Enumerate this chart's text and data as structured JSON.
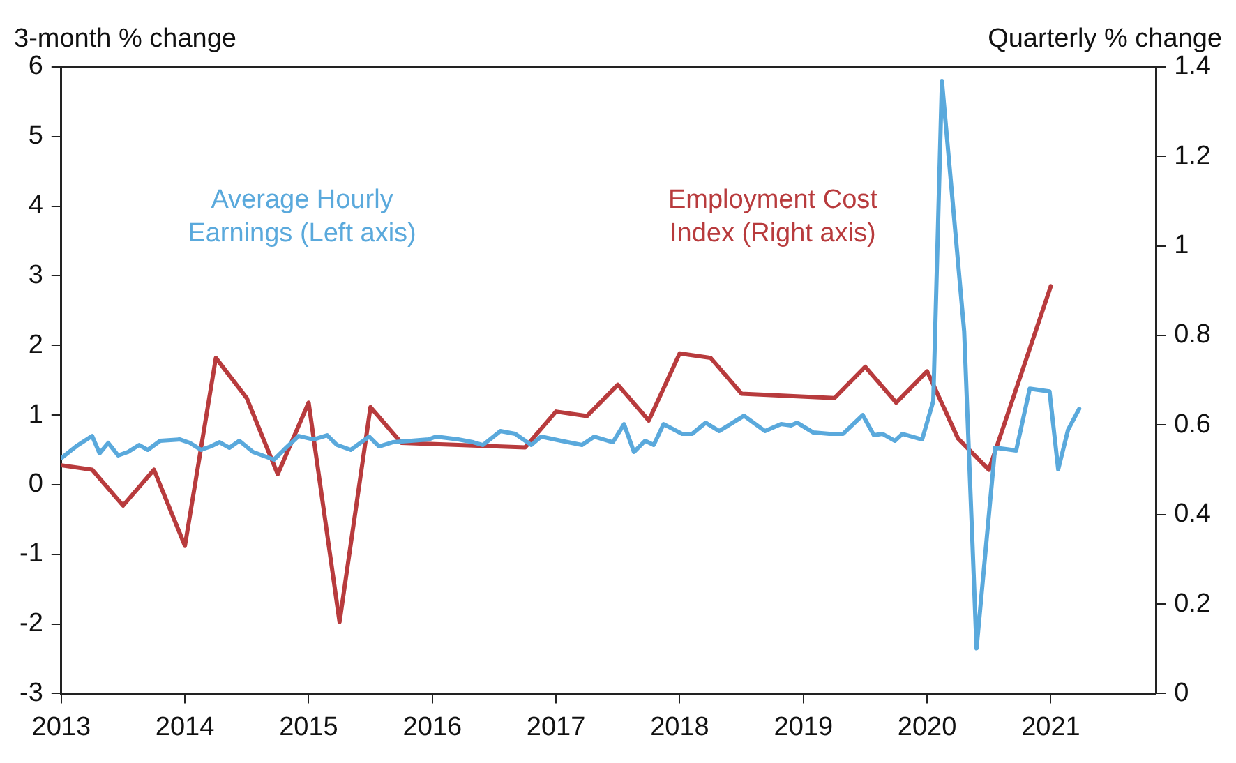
{
  "chart_data": {
    "type": "line",
    "ylabel": "3-month % change",
    "y2label": "Quarterly % change",
    "xlim": [
      2013,
      2021.85
    ],
    "xticks": [
      {
        "value": 2013,
        "label": "2013"
      },
      {
        "value": 2014,
        "label": "2014"
      },
      {
        "value": 2015,
        "label": "2015"
      },
      {
        "value": 2016,
        "label": "2016"
      },
      {
        "value": 2017,
        "label": "2017"
      },
      {
        "value": 2018,
        "label": "2018"
      },
      {
        "value": 2019,
        "label": "2019"
      },
      {
        "value": 2020,
        "label": "2020"
      },
      {
        "value": 2021,
        "label": "2021"
      }
    ],
    "ylim": [
      -3,
      6
    ],
    "yticks": [
      -3,
      -2,
      -1,
      0,
      1,
      2,
      3,
      4,
      5,
      6
    ],
    "y2lim": [
      0,
      1.4
    ],
    "y2ticks": [
      0,
      0.2,
      0.4,
      0.6,
      0.8,
      1,
      1.2,
      1.4
    ],
    "grid": false,
    "legend": false,
    "marker": "none",
    "line_style": "solid",
    "series": [
      {
        "name": "Average Hourly Earnings (Left axis)",
        "color": "#5aa9dc",
        "axis": "y",
        "x": [
          2013,
          2013.12,
          2013.25,
          2013.31,
          2013.38,
          2013.46,
          2013.54,
          2013.63,
          2013.7,
          2013.8,
          2013.96,
          2014.04,
          2014.13,
          2014.21,
          2014.28,
          2014.36,
          2014.44,
          2014.55,
          2014.72,
          2014.8,
          2014.92,
          2015.04,
          2015.15,
          2015.23,
          2015.34,
          2015.49,
          2015.57,
          2015.68,
          2015.83,
          2015.97,
          2016.03,
          2016.21,
          2016.33,
          2016.41,
          2016.55,
          2016.67,
          2016.8,
          2016.88,
          2017.04,
          2017.21,
          2017.31,
          2017.46,
          2017.55,
          2017.63,
          2017.72,
          2017.79,
          2017.87,
          2018.02,
          2018.1,
          2018.21,
          2018.32,
          2018.52,
          2018.69,
          2018.82,
          2018.9,
          2018.95,
          2019.08,
          2019.21,
          2019.32,
          2019.48,
          2019.57,
          2019.64,
          2019.74,
          2019.8,
          2019.96,
          2020.05,
          2020.12,
          2020.3,
          2020.4,
          2020.55,
          2020.64,
          2020.72,
          2020.83,
          2020.99,
          2021.06,
          2021.14,
          2021.23
        ],
        "values": [
          0.38,
          0.55,
          0.7,
          0.45,
          0.6,
          0.42,
          0.47,
          0.57,
          0.5,
          0.63,
          0.65,
          0.6,
          0.5,
          0.55,
          0.61,
          0.53,
          0.63,
          0.47,
          0.36,
          0.5,
          0.7,
          0.65,
          0.71,
          0.57,
          0.5,
          0.69,
          0.55,
          0.61,
          0.63,
          0.65,
          0.69,
          0.65,
          0.61,
          0.57,
          0.77,
          0.73,
          0.57,
          0.69,
          0.63,
          0.57,
          0.69,
          0.61,
          0.87,
          0.47,
          0.63,
          0.57,
          0.87,
          0.73,
          0.73,
          0.89,
          0.77,
          0.99,
          0.77,
          0.87,
          0.85,
          0.89,
          0.75,
          0.73,
          0.73,
          1.0,
          0.71,
          0.73,
          0.63,
          0.73,
          0.65,
          1.2,
          5.8,
          2.2,
          -2.35,
          0.53,
          0.51,
          0.49,
          1.38,
          1.34,
          0.22,
          0.79,
          1.09
        ]
      },
      {
        "name": "Employment Cost Index (Right axis)",
        "color": "#b83b3d",
        "axis": "y2",
        "x": [
          2013,
          2013.25,
          2013.5,
          2013.75,
          2014,
          2014.25,
          2014.5,
          2014.75,
          2015,
          2015.25,
          2015.5,
          2015.75,
          2016.75,
          2017,
          2017.25,
          2017.5,
          2017.75,
          2018,
          2018.25,
          2018.5,
          2019.25,
          2019.5,
          2019.75,
          2020,
          2020.25,
          2020.5,
          2021
        ],
        "values": [
          0.51,
          0.5,
          0.42,
          0.5,
          0.33,
          0.75,
          0.66,
          0.49,
          0.65,
          0.16,
          0.64,
          0.56,
          0.55,
          0.63,
          0.62,
          0.69,
          0.61,
          0.76,
          0.75,
          0.67,
          0.66,
          0.73,
          0.65,
          0.72,
          0.57,
          0.5,
          0.91
        ]
      }
    ]
  }
}
